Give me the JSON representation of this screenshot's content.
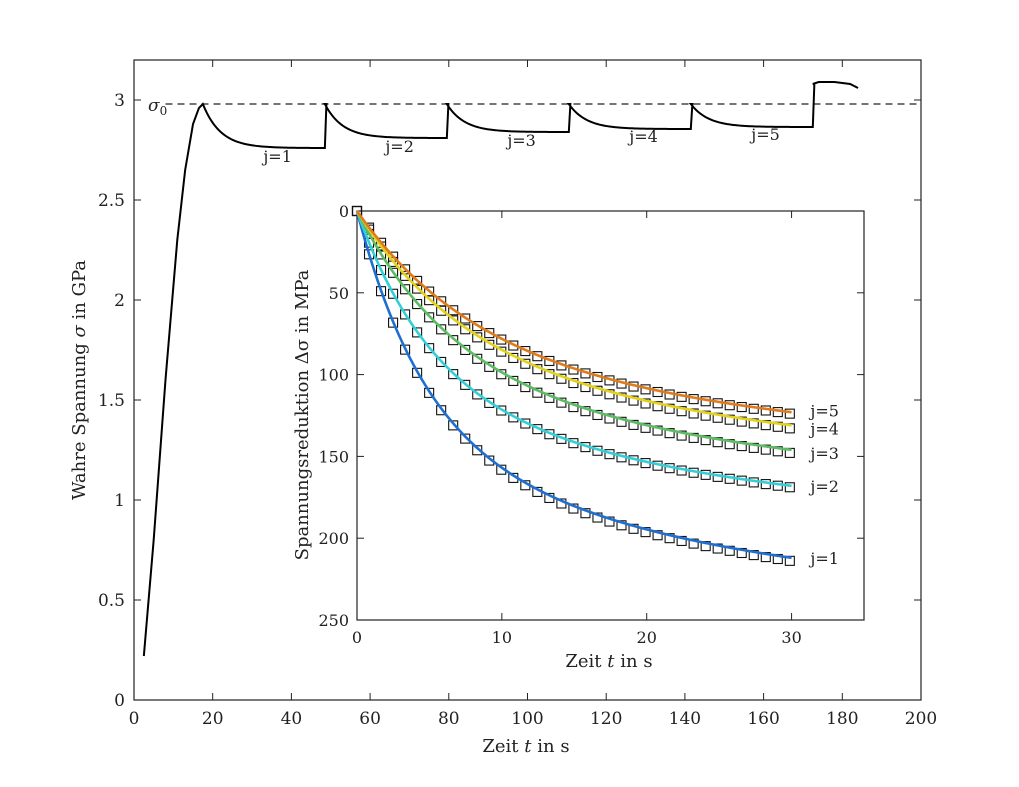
{
  "chart_data": [
    {
      "id": "main",
      "type": "line",
      "title": "",
      "xlabel": "Zeit t in s",
      "ylabel": "Wahre Spannung σ in GPa",
      "xlim": [
        0,
        200
      ],
      "ylim": [
        0,
        3.2
      ],
      "xticks": [
        "0",
        "20",
        "40",
        "60",
        "80",
        "100",
        "120",
        "140",
        "160",
        "180",
        "200"
      ],
      "yticks": [
        "0",
        "0.5",
        "1",
        "1.5",
        "2",
        "2.5",
        "3"
      ],
      "grid": false,
      "reference_line": {
        "label": "σ0",
        "y": 2.98,
        "style": "dashed"
      },
      "series": [
        {
          "color": "#000000",
          "segments": [
            {
              "x": [
                2.5,
                5,
                8,
                11,
                13,
                15,
                16.5,
                17.5
              ],
              "y": [
                0.22,
                0.8,
                1.6,
                2.3,
                2.65,
                2.88,
                2.96,
                2.98
              ]
            },
            {
              "relax": true,
              "t0": 17.5,
              "t1": 48.5,
              "y0": 2.98,
              "y1": 2.76,
              "jump_to": 2.98
            },
            {
              "relax": true,
              "t0": 48.5,
              "t1": 79.5,
              "y0": 2.98,
              "y1": 2.81,
              "jump_to": 2.98
            },
            {
              "relax": true,
              "t0": 79.5,
              "t1": 110.5,
              "y0": 2.98,
              "y1": 2.84,
              "jump_to": 2.98
            },
            {
              "relax": true,
              "t0": 110.5,
              "t1": 141.5,
              "y0": 2.98,
              "y1": 2.855,
              "jump_to": 2.98
            },
            {
              "relax": true,
              "t0": 141.5,
              "t1": 172.5,
              "y0": 2.98,
              "y1": 2.865,
              "jump_to": 3.08
            },
            {
              "x": [
                172.5,
                174,
                178,
                182,
                184
              ],
              "y": [
                3.08,
                3.09,
                3.09,
                3.08,
                3.06
              ]
            }
          ]
        }
      ],
      "annotations": [
        {
          "text": "j=1",
          "x": 36.5,
          "y": 2.69
        },
        {
          "text": "j=2",
          "x": 67.5,
          "y": 2.74
        },
        {
          "text": "j=3",
          "x": 98.5,
          "y": 2.77
        },
        {
          "text": "j=4",
          "x": 129.5,
          "y": 2.79
        },
        {
          "text": "j=5",
          "x": 160.5,
          "y": 2.8
        }
      ]
    },
    {
      "id": "inset",
      "type": "line",
      "title": "",
      "xlabel": "Zeit t in s",
      "ylabel": "Spannungsreduktion Δσ in MPa",
      "xlim": [
        0,
        35
      ],
      "ylim": [
        250,
        0
      ],
      "y_inverted": true,
      "xticks": [
        "0",
        "10",
        "20",
        "30"
      ],
      "yticks": [
        "0",
        "50",
        "100",
        "150",
        "200",
        "250"
      ],
      "grid": false,
      "series": [
        {
          "name": "j=1",
          "color": "#1f6fd1",
          "final": 212,
          "tau": 4.5,
          "marker_final": 214
        },
        {
          "name": "j=2",
          "color": "#34cfd6",
          "final": 168,
          "tau": 5.0,
          "marker_final": 169
        },
        {
          "name": "j=3",
          "color": "#5dbb63",
          "final": 146,
          "tau": 6.5,
          "marker_final": 148
        },
        {
          "name": "j=4",
          "color": "#e3d21b",
          "final": 131,
          "tau": 7.5,
          "marker_final": 133
        },
        {
          "name": "j=5",
          "color": "#e07b1a",
          "final": 123,
          "tau": 8.0,
          "marker_final": 124
        }
      ],
      "legend_labels": [
        "j=5",
        "j=4",
        "j=3",
        "j=2",
        "j=1"
      ]
    }
  ]
}
